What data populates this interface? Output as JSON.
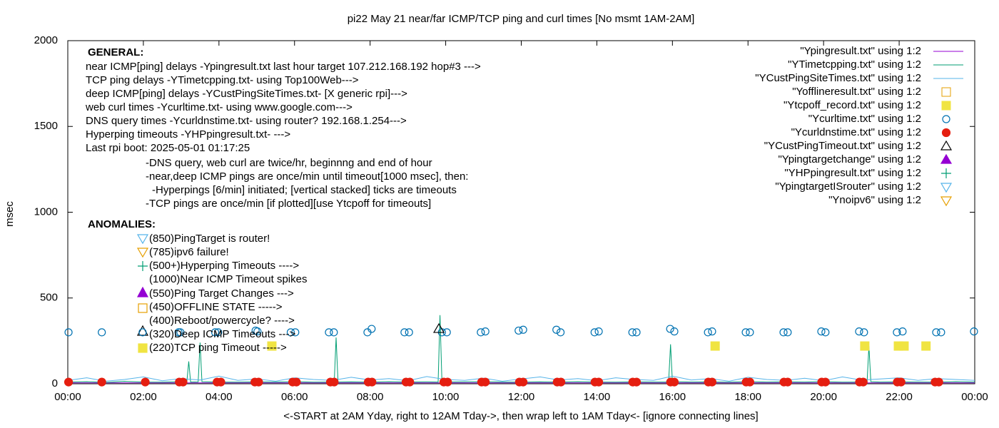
{
  "chart_data": {
    "type": "line",
    "title": "pi22 May 21  near/far ICMP/TCP ping and curl times [No msmt 1AM-2AM]",
    "x_label": "<-START at 2AM Yday, right to 12AM Tday->, then wrap left to 1AM Tday<- [ignore connecting lines]",
    "y_label": "msec",
    "xlim": [
      0,
      24
    ],
    "xticks": [
      {
        "value": 0,
        "label": "00:00"
      },
      {
        "value": 2,
        "label": "02:00"
      },
      {
        "value": 4,
        "label": "04:00"
      },
      {
        "value": 6,
        "label": "06:00"
      },
      {
        "value": 8,
        "label": "08:00"
      },
      {
        "value": 10,
        "label": "10:00"
      },
      {
        "value": 12,
        "label": "12:00"
      },
      {
        "value": 14,
        "label": "14:00"
      },
      {
        "value": 16,
        "label": "16:00"
      },
      {
        "value": 18,
        "label": "18:00"
      },
      {
        "value": 20,
        "label": "20:00"
      },
      {
        "value": 22,
        "label": "22:00"
      },
      {
        "value": 24,
        "label": "00:00"
      }
    ],
    "ylim": [
      0,
      2000
    ],
    "yticks": [
      0,
      500,
      1000,
      1500,
      2000
    ],
    "grid": false,
    "legend": "top-right",
    "annotations": [
      "GENERAL:",
      "near ICMP[ping] delays -Ypingresult.txt last hour target 107.212.168.192 hop#3 --->",
      "TCP ping delays -YTimetcpping.txt- using Top100Web--->",
      "deep ICMP[ping] delays -YCustPingSiteTimes.txt- [X generic rpi]--->",
      "web curl times -Ycurltime.txt- using www.google.com--->",
      "DNS query times -Ycurldnstime.txt- using router? 192.168.1.254--->",
      "Hyperping timeouts -YHPpingresult.txt- --->",
      "Last rpi boot: 2025-05-01 01:17:25",
      "-DNS query, web curl are twice/hr, beginnng and end of hour",
      "-near,deep ICMP pings are once/min until timeout[1000 msec], then:",
      "-Hyperpings [6/min] initiated; [vertical stacked] ticks are timeouts",
      "-TCP pings are once/min [if plotted][use Ytcpoff for timeouts]",
      "ANOMALIES:",
      "(850)PingTarget is router!",
      "(785)ipv6 failure!",
      "(500+)Hyperping Timeouts ---->",
      "(1000)Near ICMP Timeout spikes",
      "(550)Ping Target Changes --->",
      "(450)OFFLINE STATE ----->",
      "(400)Reboot/powercycle? ---->",
      "(320)Deep ICMP Timeouts --->",
      "(220)TCP ping Timeout ----->"
    ],
    "series": [
      {
        "name": "\"Ypingresult.txt\" using 1:2",
        "color": "#9400d3",
        "marker": "line",
        "x": [
          0,
          6,
          12,
          18,
          24
        ],
        "values": [
          5,
          5,
          5,
          5,
          5
        ]
      },
      {
        "name": "\"YTimetcpping.txt\" using 1:2",
        "color": "#009e73",
        "marker": "line",
        "x": [
          0,
          0.5,
          1,
          1.5,
          2,
          2.5,
          3,
          3.15,
          3.2,
          3.25,
          3.45,
          3.5,
          3.55,
          4,
          4.5,
          5,
          5.5,
          6,
          6.5,
          7,
          7.05,
          7.1,
          7.15,
          7.5,
          8,
          8.5,
          9,
          9.5,
          9.8,
          9.85,
          9.9,
          10,
          10.5,
          11,
          11.5,
          12,
          12.5,
          13,
          13.5,
          14,
          14.5,
          15,
          15.5,
          15.9,
          15.95,
          16,
          16.5,
          17,
          17.5,
          18,
          18.5,
          19,
          19.5,
          20,
          20.5,
          21,
          21.15,
          21.2,
          21.25,
          21.5,
          22,
          22.5,
          23,
          23.5,
          24
        ],
        "values": [
          10,
          12,
          8,
          14,
          10,
          9,
          12,
          10,
          130,
          10,
          11,
          240,
          12,
          10,
          9,
          11,
          10,
          12,
          9,
          10,
          10,
          270,
          10,
          11,
          9,
          12,
          10,
          11,
          10,
          400,
          15,
          10,
          11,
          12,
          10,
          9,
          11,
          10,
          12,
          10,
          9,
          11,
          10,
          10,
          230,
          12,
          10,
          11,
          9,
          12,
          10,
          11,
          10,
          12,
          9,
          10,
          10,
          220,
          12,
          10,
          11,
          10,
          9,
          12,
          10
        ]
      },
      {
        "name": "\"YCustPingSiteTimes.txt\" using 1:2",
        "color": "#56b4e9",
        "marker": "line",
        "x": [
          0,
          0.5,
          1,
          1.5,
          2,
          2.5,
          3,
          3.5,
          4,
          4.5,
          5,
          5.5,
          6,
          6.5,
          7,
          7.5,
          8,
          8.5,
          9,
          9.5,
          10,
          10.5,
          11,
          11.5,
          12,
          12.5,
          13,
          13.5,
          14,
          14.5,
          15,
          15.5,
          16,
          16.5,
          17,
          17.5,
          18,
          18.5,
          19,
          19.5,
          20,
          20.5,
          21,
          21.5,
          22,
          22.5,
          23,
          23.5,
          24
        ],
        "values": [
          20,
          35,
          15,
          25,
          40,
          18,
          30,
          22,
          45,
          20,
          28,
          15,
          35,
          25,
          20,
          38,
          22,
          30,
          18,
          42,
          25,
          20,
          33,
          15,
          28,
          40,
          22,
          30,
          18,
          35,
          25,
          20,
          45,
          22,
          30,
          15,
          38,
          25,
          20,
          32,
          18,
          40,
          22,
          28,
          35,
          20,
          30,
          25,
          20
        ]
      },
      {
        "name": "\"Yofflineresult.txt\" using 1:2",
        "color": "#e69f00",
        "marker": "square-open",
        "x": [],
        "values": []
      },
      {
        "name": "\"Ytcpoff_record.txt\" using 1:2",
        "color": "#f0e442",
        "marker": "square",
        "x": [
          5.4,
          17.13,
          21.09,
          21.98,
          22.13,
          22.71
        ],
        "values": [
          220,
          220,
          220,
          220,
          220,
          220
        ]
      },
      {
        "name": "\"Ycurltime.txt\" using 1:2",
        "color": "#0072b2",
        "marker": "circle-open",
        "x": [
          0.02,
          0.9,
          1.98,
          2.93,
          2.98,
          3.9,
          3.98,
          4.97,
          5.02,
          5.9,
          6.02,
          6.91,
          7.04,
          7.93,
          8.04,
          8.91,
          9.03,
          9.9,
          10.03,
          10.93,
          11.05,
          11.93,
          12.05,
          12.93,
          13.04,
          13.94,
          14.05,
          14.94,
          15.05,
          15.94,
          16.05,
          16.94,
          17.05,
          17.94,
          18.05,
          18.94,
          19.05,
          19.94,
          20.05,
          20.94,
          21.07,
          21.94,
          22.09,
          22.98,
          23.11,
          23.98
        ],
        "values": [
          300,
          300,
          300,
          300,
          300,
          300,
          300,
          310,
          305,
          300,
          300,
          300,
          300,
          300,
          320,
          300,
          300,
          300,
          300,
          300,
          305,
          310,
          315,
          315,
          300,
          300,
          305,
          300,
          300,
          320,
          305,
          300,
          305,
          300,
          300,
          300,
          300,
          305,
          300,
          305,
          300,
          300,
          305,
          300,
          300,
          305
        ]
      },
      {
        "name": "\"Ycurldnstime.txt\" using 1:2",
        "color": "#e51e10",
        "marker": "circle",
        "x": [
          0.02,
          0.9,
          2.05,
          2.95,
          3.05,
          3.95,
          4.05,
          4.95,
          5.05,
          5.95,
          6.05,
          6.95,
          7.05,
          7.95,
          8.05,
          8.95,
          9.05,
          9.95,
          10.05,
          10.95,
          11.05,
          11.95,
          12.05,
          12.95,
          13.05,
          13.95,
          14.05,
          14.95,
          15.05,
          15.95,
          16.05,
          16.95,
          17.05,
          17.95,
          18.05,
          18.95,
          19.05,
          19.95,
          20.05,
          20.95,
          21.05,
          21.95,
          22.05,
          22.95,
          23.05
        ],
        "values": [
          10,
          10,
          10,
          10,
          10,
          10,
          10,
          10,
          10,
          10,
          10,
          10,
          10,
          10,
          10,
          10,
          10,
          10,
          10,
          10,
          10,
          10,
          10,
          10,
          10,
          10,
          10,
          10,
          10,
          10,
          10,
          10,
          10,
          10,
          10,
          10,
          10,
          10,
          10,
          10,
          10,
          10,
          10,
          10,
          10
        ]
      },
      {
        "name": "\"YCustPingTimeout.txt\" using 1:2",
        "color": "#000000",
        "marker": "triangle-open",
        "x": [
          9.82
        ],
        "values": [
          320
        ]
      },
      {
        "name": "\"Ypingtargetchange\" using 1:2",
        "color": "#9400d3",
        "marker": "triangle",
        "x": [],
        "values": []
      },
      {
        "name": "\"YHPpingresult.txt\" using 1:2",
        "color": "#009e73",
        "marker": "plus",
        "x": [],
        "values": []
      },
      {
        "name": "\"YpingtargetISrouter\" using 1:2",
        "color": "#56b4e9",
        "marker": "triangle-down-open",
        "x": [],
        "values": []
      },
      {
        "name": "\"Ynoipv6\" using 1:2",
        "color": "#e69f00",
        "marker": "triangle-down-open",
        "x": [],
        "values": []
      }
    ]
  }
}
